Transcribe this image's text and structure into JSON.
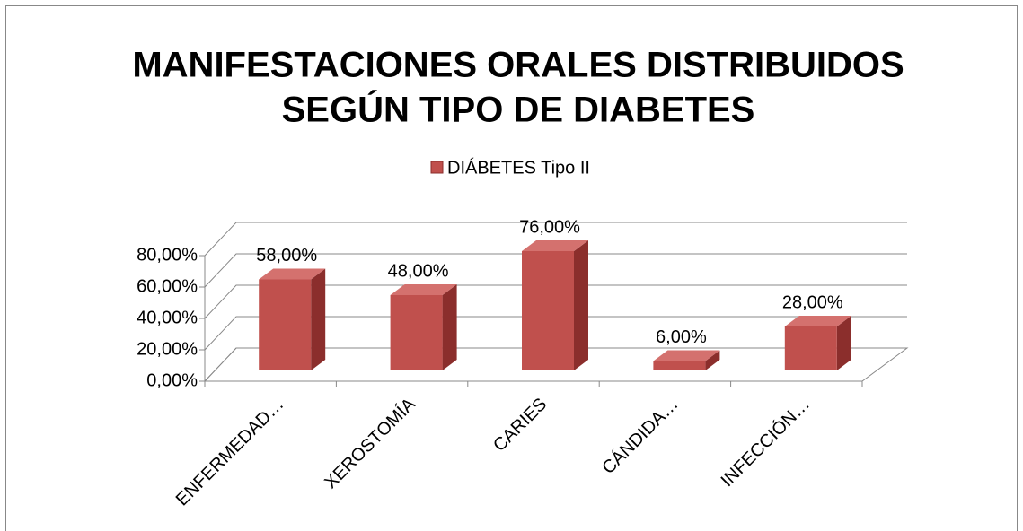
{
  "chart_data": {
    "type": "bar3d",
    "title": [
      "MANIFESTACIONES ORALES DISTRIBUIDOS",
      "SEGÚN TIPO DE DIABETES"
    ],
    "categories": [
      "ENFERMEDAD…",
      "XEROSTOMÍA",
      "CARIES",
      "CÁNDIDA…",
      "INFECCIÓN…"
    ],
    "series": [
      {
        "name": "DIÁBETES Tipo II",
        "color": "#c0504d",
        "values": [
          58,
          48,
          76,
          6,
          28
        ],
        "value_labels": [
          "58,00%",
          "48,00%",
          "76,00%",
          "6,00%",
          "28,00%"
        ]
      }
    ],
    "ylim": [
      0,
      80
    ],
    "yticks": [
      {
        "value": 0,
        "label": "0,00%"
      },
      {
        "value": 20,
        "label": "20,00%"
      },
      {
        "value": 40,
        "label": "40,00%"
      },
      {
        "value": 60,
        "label": "60,00%"
      },
      {
        "value": 80,
        "label": "80,00%"
      }
    ],
    "grid": true,
    "legend": "top"
  }
}
